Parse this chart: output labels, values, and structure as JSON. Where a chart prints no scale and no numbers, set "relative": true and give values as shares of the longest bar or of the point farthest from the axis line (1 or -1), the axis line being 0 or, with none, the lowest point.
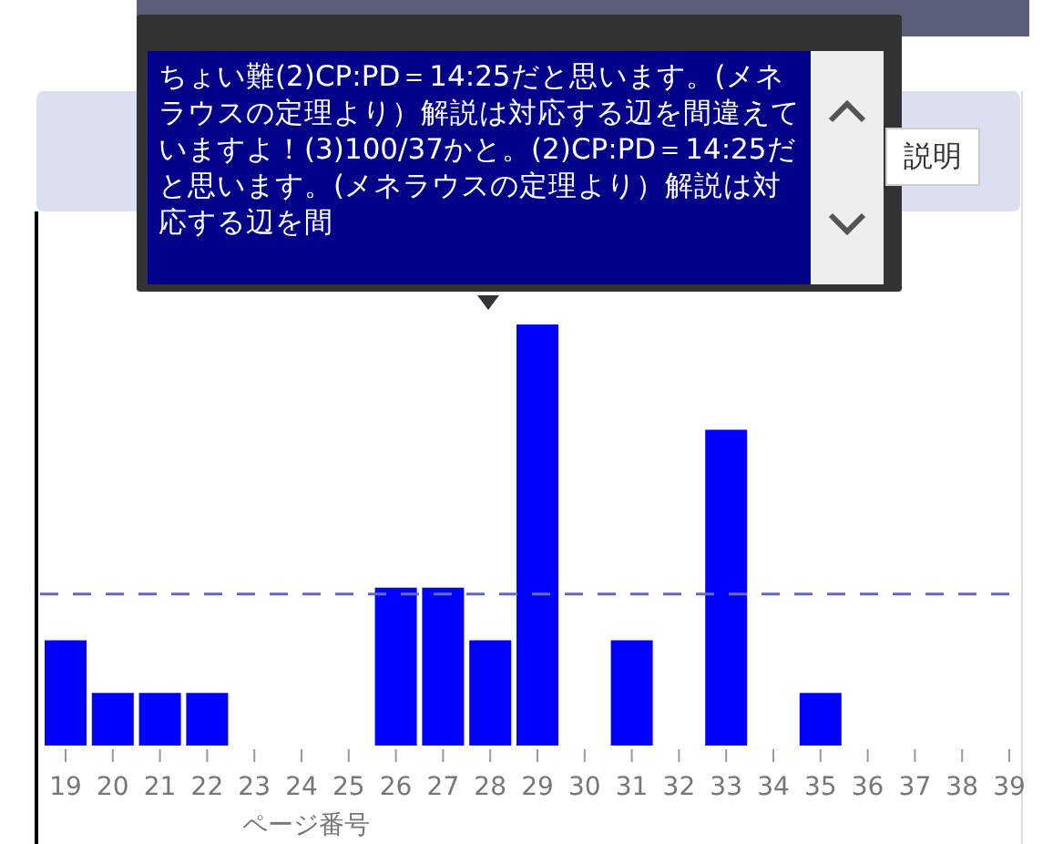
{
  "chart_data": {
    "type": "bar",
    "relative": true,
    "xlabel": "ページ番号",
    "categories": [
      "19",
      "20",
      "21",
      "22",
      "23",
      "24",
      "25",
      "26",
      "27",
      "28",
      "29",
      "30",
      "31",
      "32",
      "33",
      "34",
      "35",
      "36",
      "37",
      "38",
      "39"
    ],
    "values": [
      0.25,
      0.125,
      0.125,
      0.125,
      0,
      0,
      0,
      0.375,
      0.375,
      0.25,
      1,
      0,
      0.25,
      0,
      0.75,
      0,
      0.125,
      0,
      0,
      0,
      0
    ],
    "color": "#0000ff",
    "ref_lines": [
      {
        "axis": "y",
        "value": 0.36,
        "color": "#6666cc",
        "line_style": "dashed"
      }
    ],
    "annotations": [
      "ちょい難(2)CP:PD＝14:25だと思います。(メネラウスの定理より）解説は対応する辺を間違えていますよ！(3)100/37かと。(2)CP:PD＝14:25だと思います。(メネラウスの定理より）解説は対応する辺を間",
      "説明"
    ]
  }
}
